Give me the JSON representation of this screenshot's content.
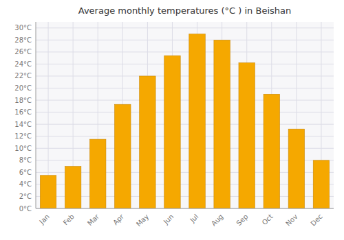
{
  "chart_data": {
    "type": "bar",
    "title": "Average monthly temperatures (°C ) in Beishan",
    "categories": [
      "Jan",
      "Feb",
      "Mar",
      "Apr",
      "May",
      "Jun",
      "Jul",
      "Aug",
      "Sep",
      "Oct",
      "Nov",
      "Dec"
    ],
    "values": [
      5.5,
      7.0,
      11.5,
      17.3,
      22.0,
      25.4,
      29.0,
      28.0,
      24.2,
      19.0,
      13.2,
      8.0
    ],
    "color": "#F5A800",
    "ylim": [
      0,
      31
    ],
    "yticks": [
      {
        "value": 0,
        "label": "0°C"
      },
      {
        "value": 2,
        "label": "2°C"
      },
      {
        "value": 4,
        "label": "4°C"
      },
      {
        "value": 6,
        "label": "6°C"
      },
      {
        "value": 8,
        "label": "8°C"
      },
      {
        "value": 10,
        "label": "10°C"
      },
      {
        "value": 12,
        "label": "12°C"
      },
      {
        "value": 14,
        "label": "14°C"
      },
      {
        "value": 16,
        "label": "16°C"
      },
      {
        "value": 18,
        "label": "18°C"
      },
      {
        "value": 20,
        "label": "20°C"
      },
      {
        "value": 22,
        "label": "22°C"
      },
      {
        "value": 24,
        "label": "24°C"
      },
      {
        "value": 26,
        "label": "26°C"
      },
      {
        "value": 28,
        "label": "28°C"
      },
      {
        "value": 30,
        "label": "30°C"
      }
    ],
    "grid": true
  }
}
